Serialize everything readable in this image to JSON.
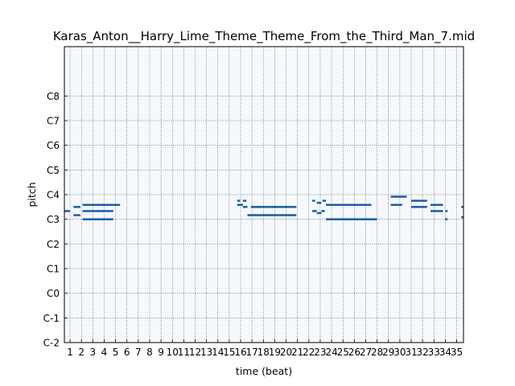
{
  "chart_data": {
    "type": "piano-roll",
    "title": "Karas_Anton__Harry_Lime_Theme_Theme_From_the_Third_Man_7.mid",
    "xlabel": "time (beat)",
    "ylabel": "pitch",
    "xlim": [
      0.5,
      35.6
    ],
    "ylim": [
      -24,
      120
    ],
    "grid": true,
    "x_ticks": [
      1,
      2,
      3,
      4,
      5,
      6,
      7,
      8,
      9,
      10,
      11,
      12,
      13,
      14,
      15,
      16,
      17,
      18,
      19,
      20,
      21,
      22,
      23,
      24,
      25,
      26,
      27,
      28,
      29,
      30,
      31,
      32,
      33,
      34,
      35
    ],
    "y_ticks": [
      {
        "pitch": -24,
        "label": "C-2"
      },
      {
        "pitch": -12,
        "label": "C-1"
      },
      {
        "pitch": 0,
        "label": "C0"
      },
      {
        "pitch": 12,
        "label": "C1"
      },
      {
        "pitch": 24,
        "label": "C2"
      },
      {
        "pitch": 36,
        "label": "C3"
      },
      {
        "pitch": 48,
        "label": "C4"
      },
      {
        "pitch": 60,
        "label": "C5"
      },
      {
        "pitch": 72,
        "label": "C6"
      },
      {
        "pitch": 84,
        "label": "C7"
      },
      {
        "pitch": 96,
        "label": "C8"
      }
    ],
    "colors": {
      "note": "#1f5fa3",
      "background": "#f5f9fd",
      "grid": "#222222"
    },
    "notes": [
      {
        "start": 0.5,
        "end": 1.0,
        "pitch": 40
      },
      {
        "start": 1.3,
        "end": 1.9,
        "pitch": 38
      },
      {
        "start": 1.3,
        "end": 1.9,
        "pitch": 42
      },
      {
        "start": 2.1,
        "end": 5.4,
        "pitch": 43
      },
      {
        "start": 2.1,
        "end": 4.8,
        "pitch": 40
      },
      {
        "start": 2.1,
        "end": 4.8,
        "pitch": 36
      },
      {
        "start": 15.7,
        "end": 15.95,
        "pitch": 45
      },
      {
        "start": 16.2,
        "end": 16.5,
        "pitch": 45
      },
      {
        "start": 15.7,
        "end": 16.2,
        "pitch": 43
      },
      {
        "start": 16.2,
        "end": 16.6,
        "pitch": 42
      },
      {
        "start": 16.9,
        "end": 20.9,
        "pitch": 42
      },
      {
        "start": 16.6,
        "end": 20.9,
        "pitch": 38
      },
      {
        "start": 22.3,
        "end": 22.55,
        "pitch": 45
      },
      {
        "start": 22.7,
        "end": 23.1,
        "pitch": 44
      },
      {
        "start": 23.2,
        "end": 23.5,
        "pitch": 45
      },
      {
        "start": 22.3,
        "end": 22.7,
        "pitch": 40
      },
      {
        "start": 22.7,
        "end": 23.1,
        "pitch": 39
      },
      {
        "start": 23.1,
        "end": 23.4,
        "pitch": 40
      },
      {
        "start": 23.5,
        "end": 27.5,
        "pitch": 43
      },
      {
        "start": 23.5,
        "end": 28.0,
        "pitch": 36
      },
      {
        "start": 29.2,
        "end": 30.6,
        "pitch": 47
      },
      {
        "start": 29.2,
        "end": 30.2,
        "pitch": 43
      },
      {
        "start": 31.0,
        "end": 32.4,
        "pitch": 45
      },
      {
        "start": 31.0,
        "end": 32.4,
        "pitch": 42
      },
      {
        "start": 32.7,
        "end": 33.8,
        "pitch": 43
      },
      {
        "start": 32.7,
        "end": 33.8,
        "pitch": 40
      },
      {
        "start": 34.0,
        "end": 34.2,
        "pitch": 40
      },
      {
        "start": 34.0,
        "end": 34.2,
        "pitch": 36
      },
      {
        "start": 35.4,
        "end": 35.6,
        "pitch": 42
      },
      {
        "start": 35.4,
        "end": 35.6,
        "pitch": 37
      }
    ]
  }
}
